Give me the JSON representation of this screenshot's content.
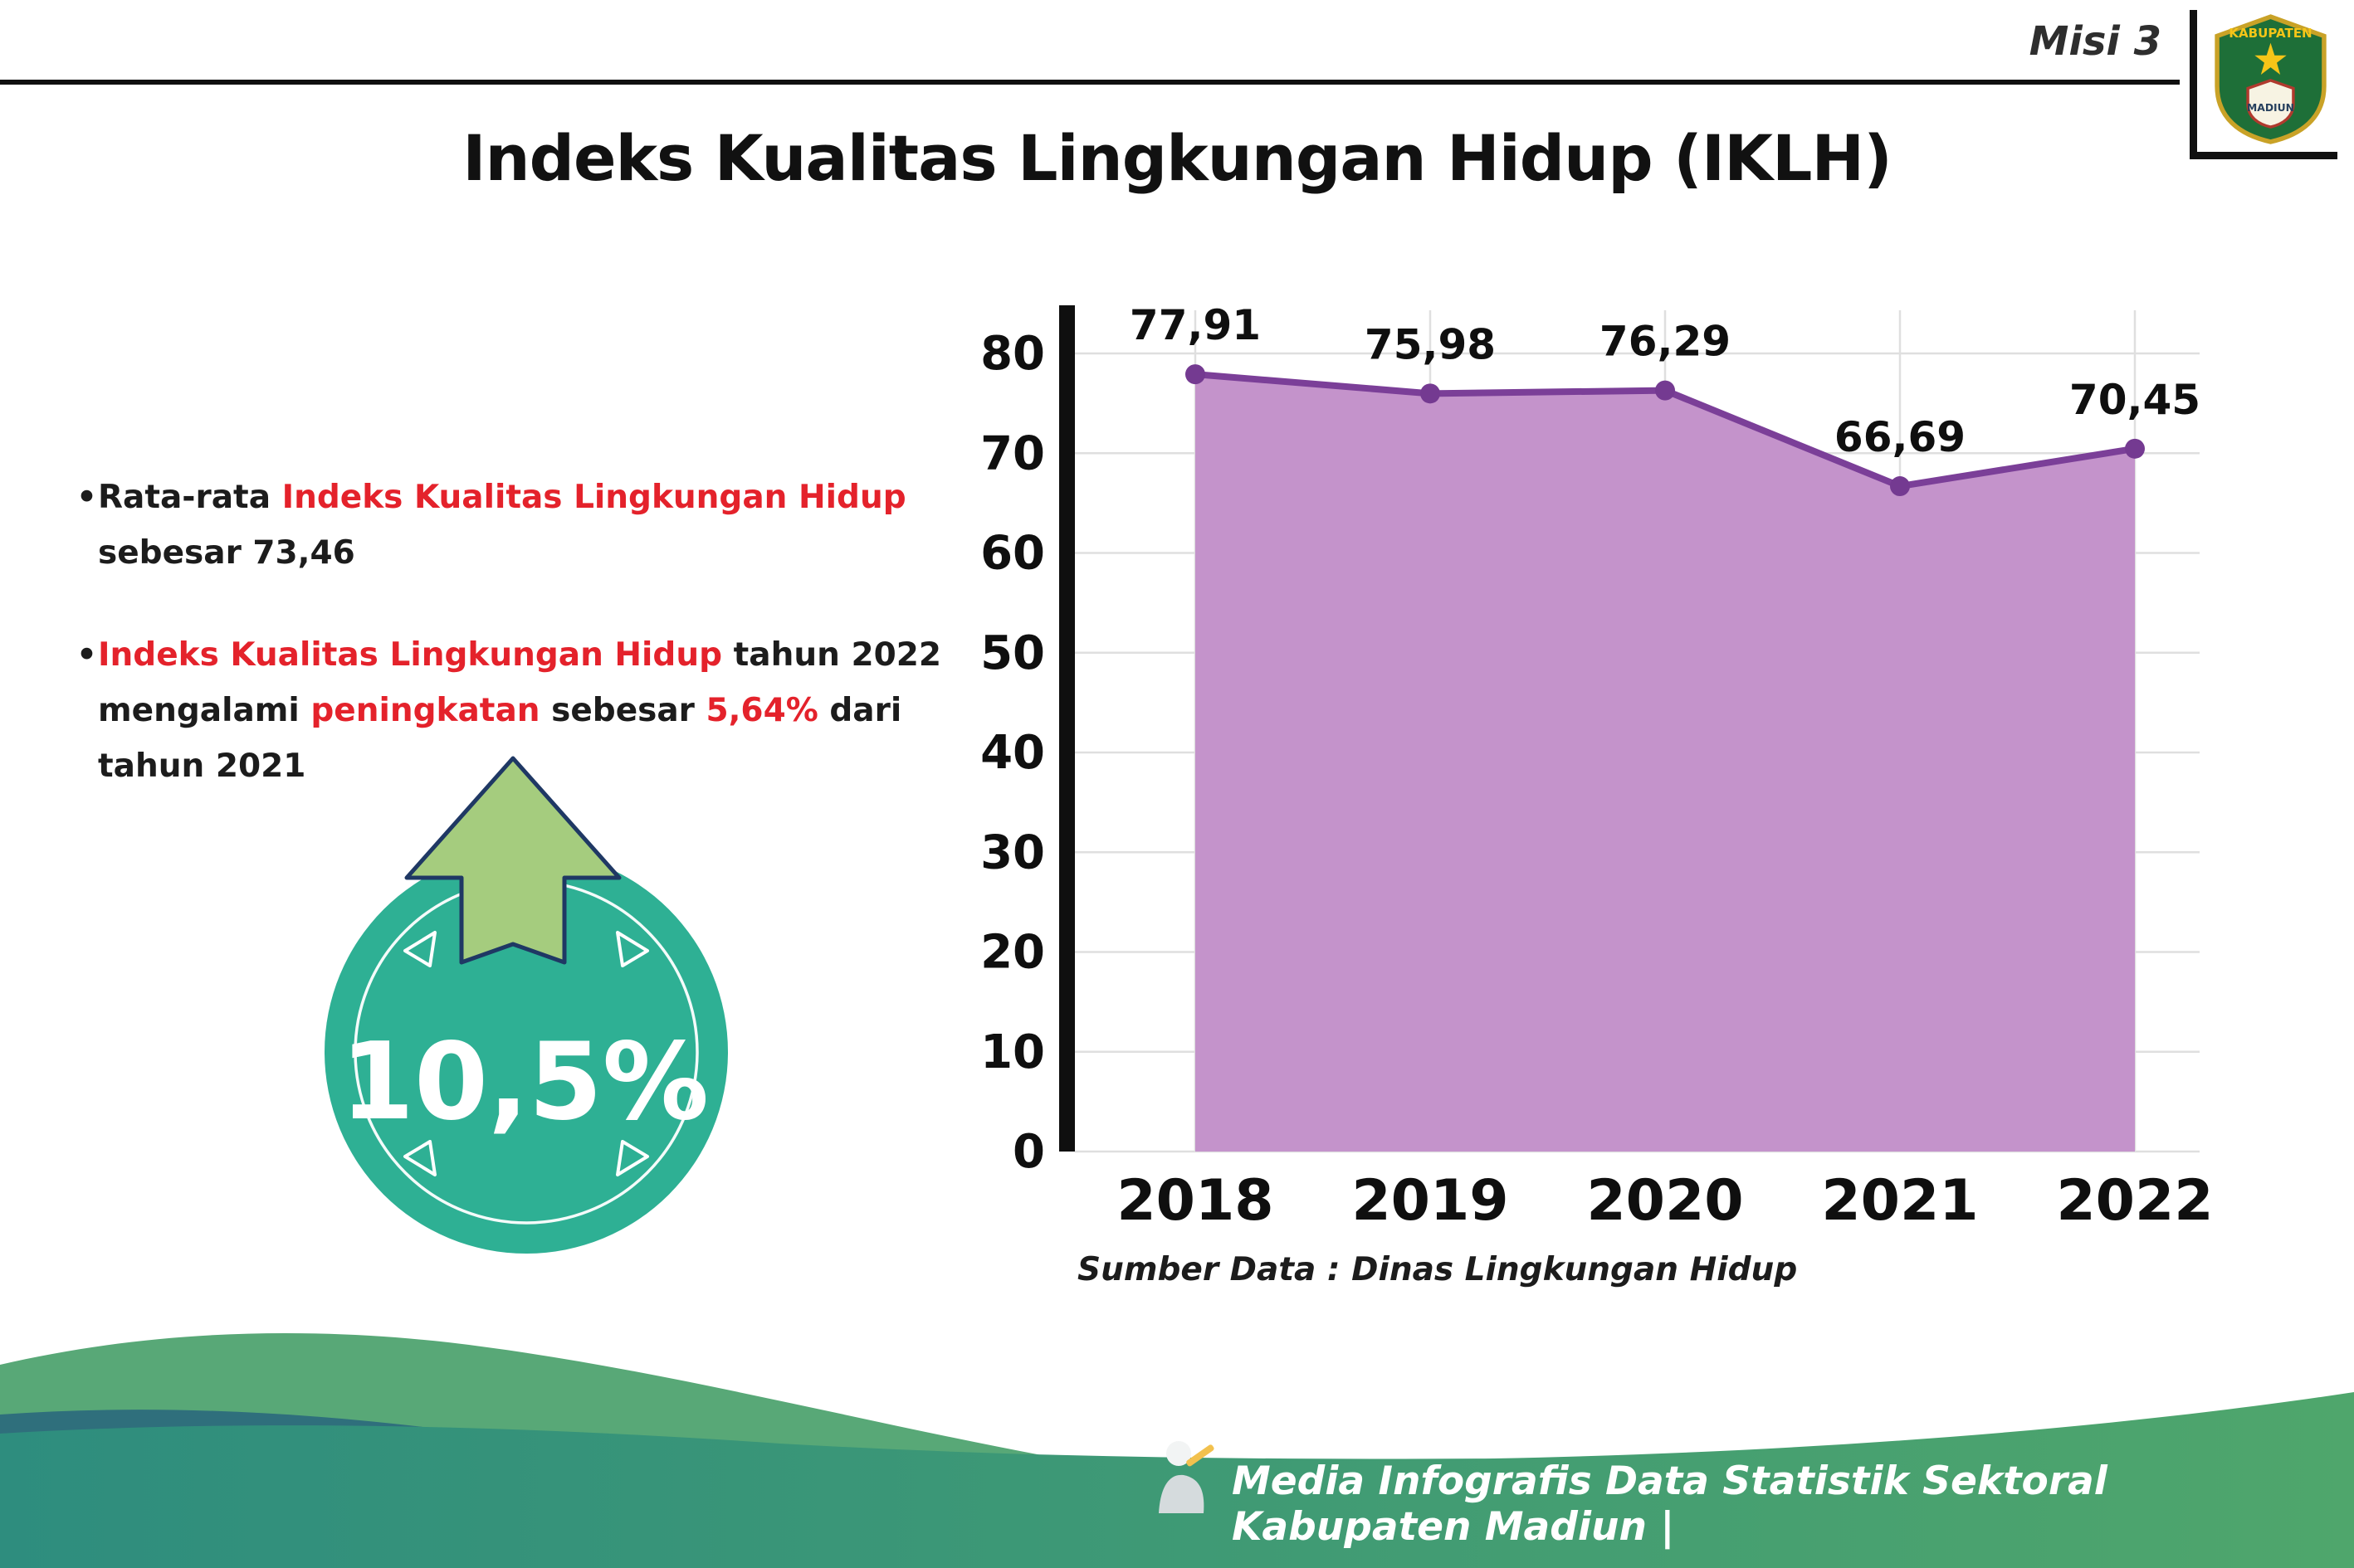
{
  "header": {
    "misi": "Misi 3",
    "title": "Indeks Kualitas Lingkungan Hidup (IKLH)",
    "logo_top": "KABUPATEN",
    "logo_bottom": "MADIUN"
  },
  "notes": {
    "n1": {
      "p0": "Rata-rata ",
      "p1": "Indeks Kualitas Lingkungan Hidup",
      "p2": " sebesar 73,46"
    },
    "n2": {
      "p0": "Indeks Kualitas Lingkungan Hidup",
      "p1": " tahun 2022 mengalami ",
      "p2": "peningkatan",
      "p3": " sebesar ",
      "p4": "5,64%",
      "p5": " dari tahun 2021"
    }
  },
  "badge": {
    "value": "10,5%"
  },
  "chart_data": {
    "type": "area",
    "title": "Indeks Kualitas Lingkungan Hidup (IKLH)",
    "categories": [
      "2018",
      "2019",
      "2020",
      "2021",
      "2022"
    ],
    "values": [
      77.91,
      75.98,
      76.29,
      66.69,
      70.45
    ],
    "value_labels": [
      "77,91",
      "75,98",
      "76,29",
      "66,69",
      "70,45"
    ],
    "ylim": [
      0,
      80
    ],
    "yticks": [
      0,
      10,
      20,
      30,
      40,
      50,
      60,
      70,
      80
    ],
    "grid": "light-gray vertical and horizontal",
    "legend": "none",
    "source": "Sumber Data : Dinas Lingkungan Hidup",
    "colors": {
      "area": "#C493CB",
      "line": "#7B3F98",
      "point": "#743A91",
      "axis": "#0f0f0f"
    }
  },
  "footer": {
    "credit": "Media Infografis Data Statistik Sektoral Kabupaten Madiun |"
  },
  "colors": {
    "accent_red": "#E4222B",
    "badge_teal": "#2EB094",
    "arrow_green": "#A5CC7E",
    "arrow_outline_navy": "#1F3864",
    "wave_green": "#58A877",
    "wave_dark_teal": "#2F6F7C",
    "band_gradient_start": "#2E8D7E",
    "band_gradient_end": "#4FA66C"
  },
  "icons": {
    "up-arrow-icon": "⬆",
    "kabupaten-madiun-logo": "shield emblem",
    "writer-icon": "mascot person writing"
  }
}
